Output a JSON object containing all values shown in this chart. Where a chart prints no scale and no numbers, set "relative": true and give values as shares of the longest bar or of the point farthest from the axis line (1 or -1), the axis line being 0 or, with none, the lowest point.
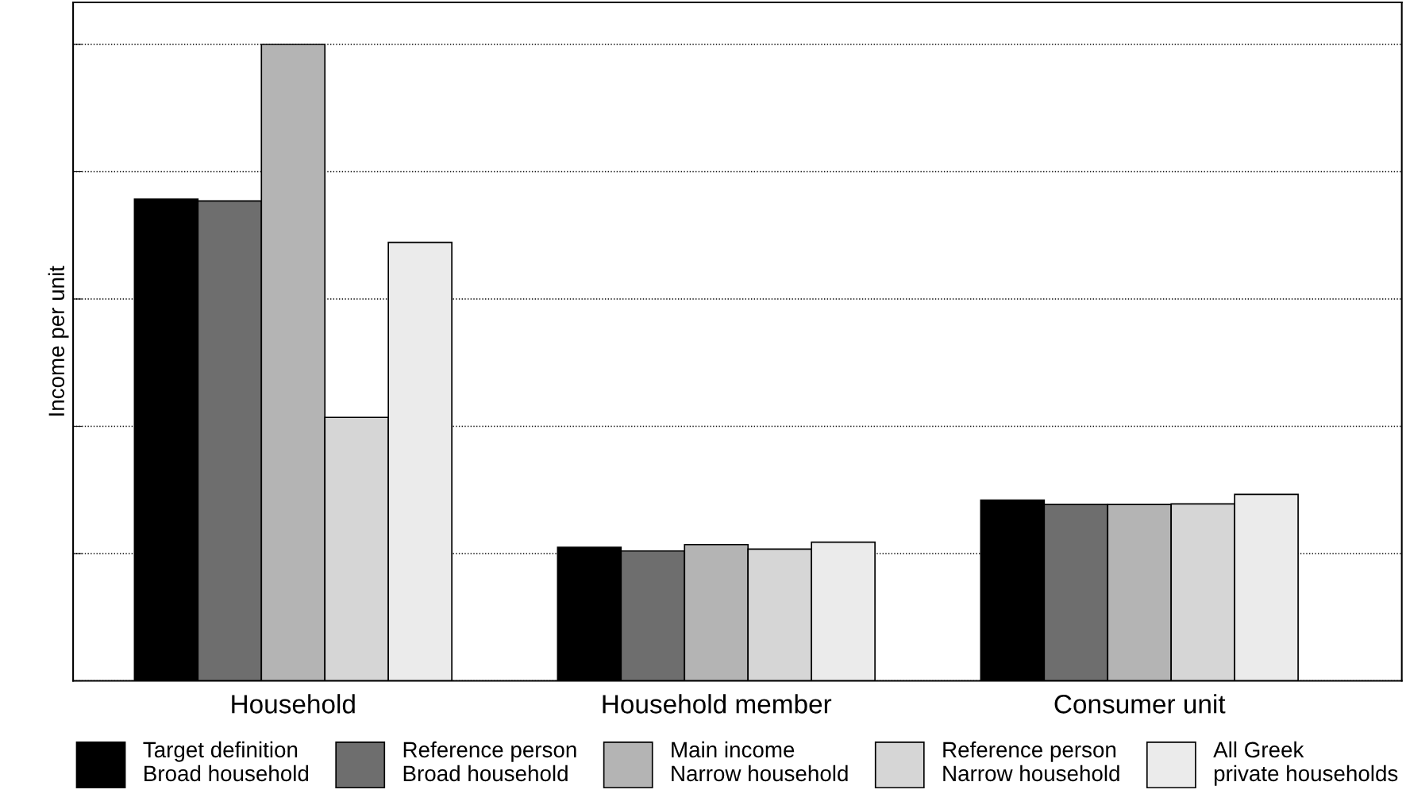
{
  "chart_data": {
    "type": "bar",
    "ylabel": "Income per unit",
    "relative": true,
    "grid": "y",
    "legend": "bottom",
    "categories": [
      "Household",
      "Household member",
      "Consumer unit"
    ],
    "series": [
      {
        "name": "Target definition\nBroad household",
        "color": "#000000",
        "values": [
          0.757,
          0.21,
          0.284
        ]
      },
      {
        "name": "Reference person\nBroad household",
        "color": "#6e6e6e",
        "values": [
          0.754,
          0.204,
          0.277
        ]
      },
      {
        "name": "Main income\nNarrow household",
        "color": "#b4b4b4",
        "values": [
          1.0,
          0.214,
          0.277
        ]
      },
      {
        "name": "Reference person\nNarrow household",
        "color": "#d6d6d6",
        "values": [
          0.414,
          0.207,
          0.278
        ]
      },
      {
        "name": "All Greek\nprivate households",
        "color": "#ebebeb",
        "values": [
          0.689,
          0.218,
          0.293
        ]
      }
    ]
  }
}
